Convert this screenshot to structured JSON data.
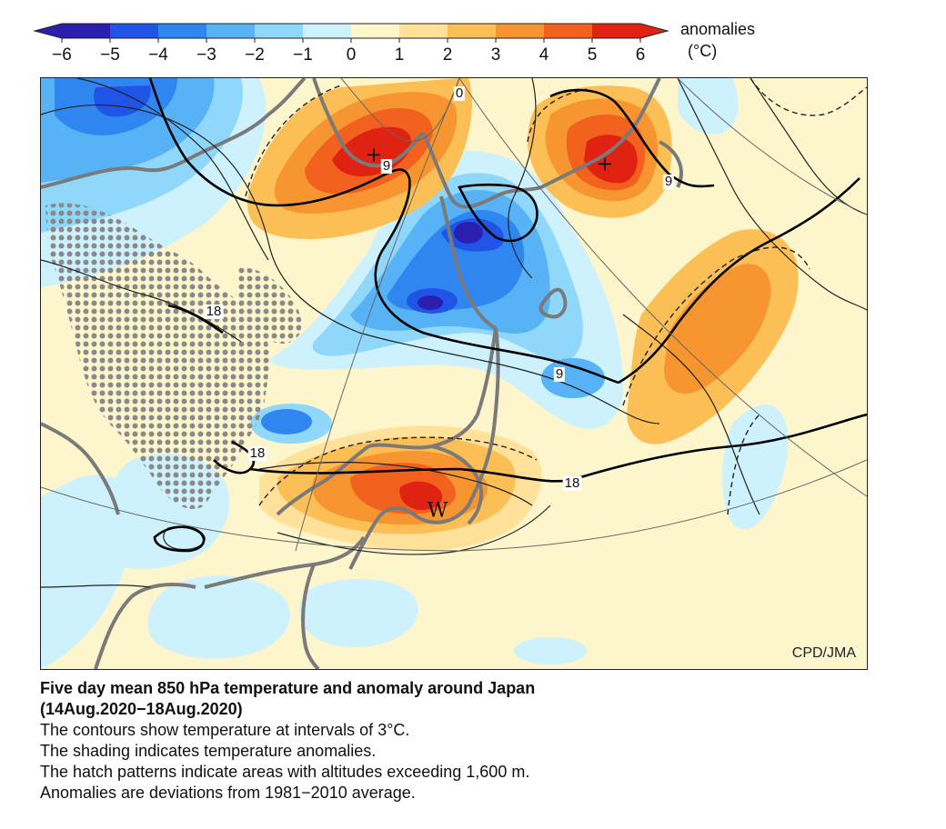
{
  "colorbar": {
    "ticks": [
      "−6",
      "−5",
      "−4",
      "−3",
      "−2",
      "−1",
      "0",
      "1",
      "2",
      "3",
      "4",
      "5",
      "6"
    ],
    "unit_title": "anomalies",
    "unit": "(°C)",
    "colors": [
      "#2b1fb0",
      "#1f54e6",
      "#2f86f0",
      "#57b3f5",
      "#8fd8fb",
      "#cdf1fd",
      "#fff7c9",
      "#ffe19a",
      "#fbbf55",
      "#f79530",
      "#f2611d",
      "#e02212"
    ]
  },
  "map": {
    "contour_labels": [
      "0",
      "9",
      "9",
      "18",
      "9",
      "18",
      "18"
    ],
    "center_marks": [
      "+",
      "+",
      "W"
    ],
    "credit": "CPD/JMA"
  },
  "caption": {
    "title_line1": "Five day mean 850 hPa temperature and anomaly around Japan",
    "title_line2": "(14Aug.2020−18Aug.2020)",
    "line1": "The contours show temperature at intervals of 3°C.",
    "line2": "The shading indicates temperature anomalies.",
    "line3": "The hatch patterns indicate areas with altitudes exceeding 1,600 m.",
    "line4": "Anomalies are deviations from 1981−2010 average."
  }
}
